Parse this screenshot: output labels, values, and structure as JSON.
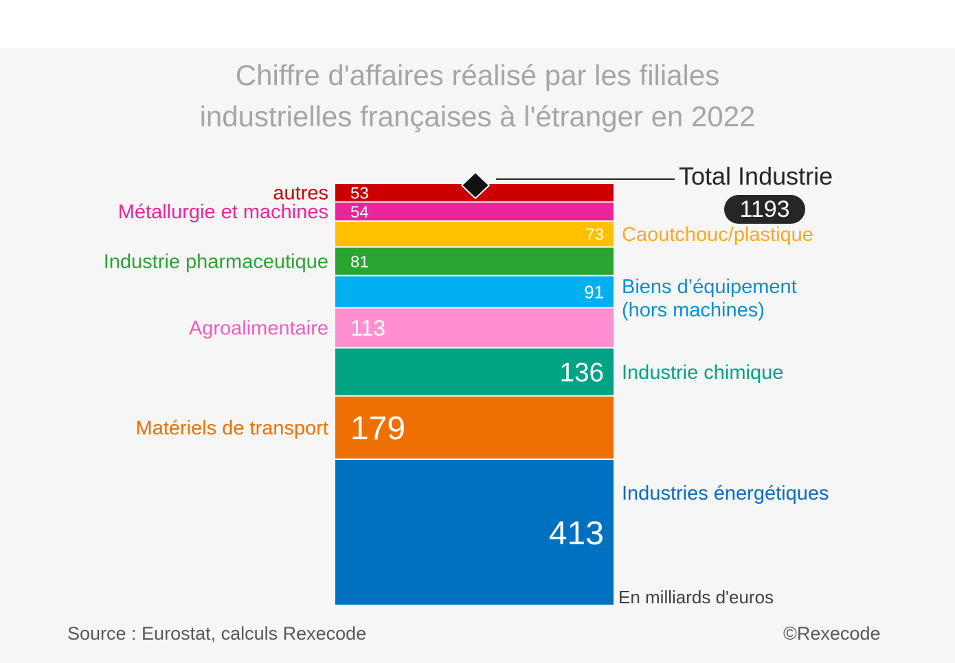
{
  "title_line1": "Chiffre d'affaires réalisé par les filiales",
  "title_line2": "industrielles françaises à l'étranger en 2022",
  "source": "Source : Eurostat, calculs Rexecode",
  "copyright": "©Rexecode",
  "unit": "En milliards d'euros",
  "total": {
    "label": "Total Industrie",
    "value": "1193"
  },
  "chart_data": {
    "type": "bar",
    "stacked": true,
    "categories": [
      "autres",
      "Métallurgie et machines",
      "Caoutchouc/plastique",
      "Industrie pharmaceutique",
      "Biens d’équipement (hors machines)",
      "Agroalimentaire",
      "Industrie chimique",
      "Matériels de transport",
      "Industries énergétiques"
    ],
    "values": [
      53,
      54,
      73,
      81,
      91,
      113,
      136,
      179,
      413
    ],
    "total": 1193,
    "colors": [
      "#cc0000",
      "#e9259a",
      "#ffc000",
      "#2aa532",
      "#00b0f0",
      "#ff8fd0",
      "#00a383",
      "#ee7000",
      "#0070c0"
    ],
    "label_colors": [
      "#cc0000",
      "#e9259a",
      "#f9a825",
      "#2aa532",
      "#0c8ed6",
      "#f05db8",
      "#00a383",
      "#ee7000",
      "#0c6cc0"
    ]
  }
}
